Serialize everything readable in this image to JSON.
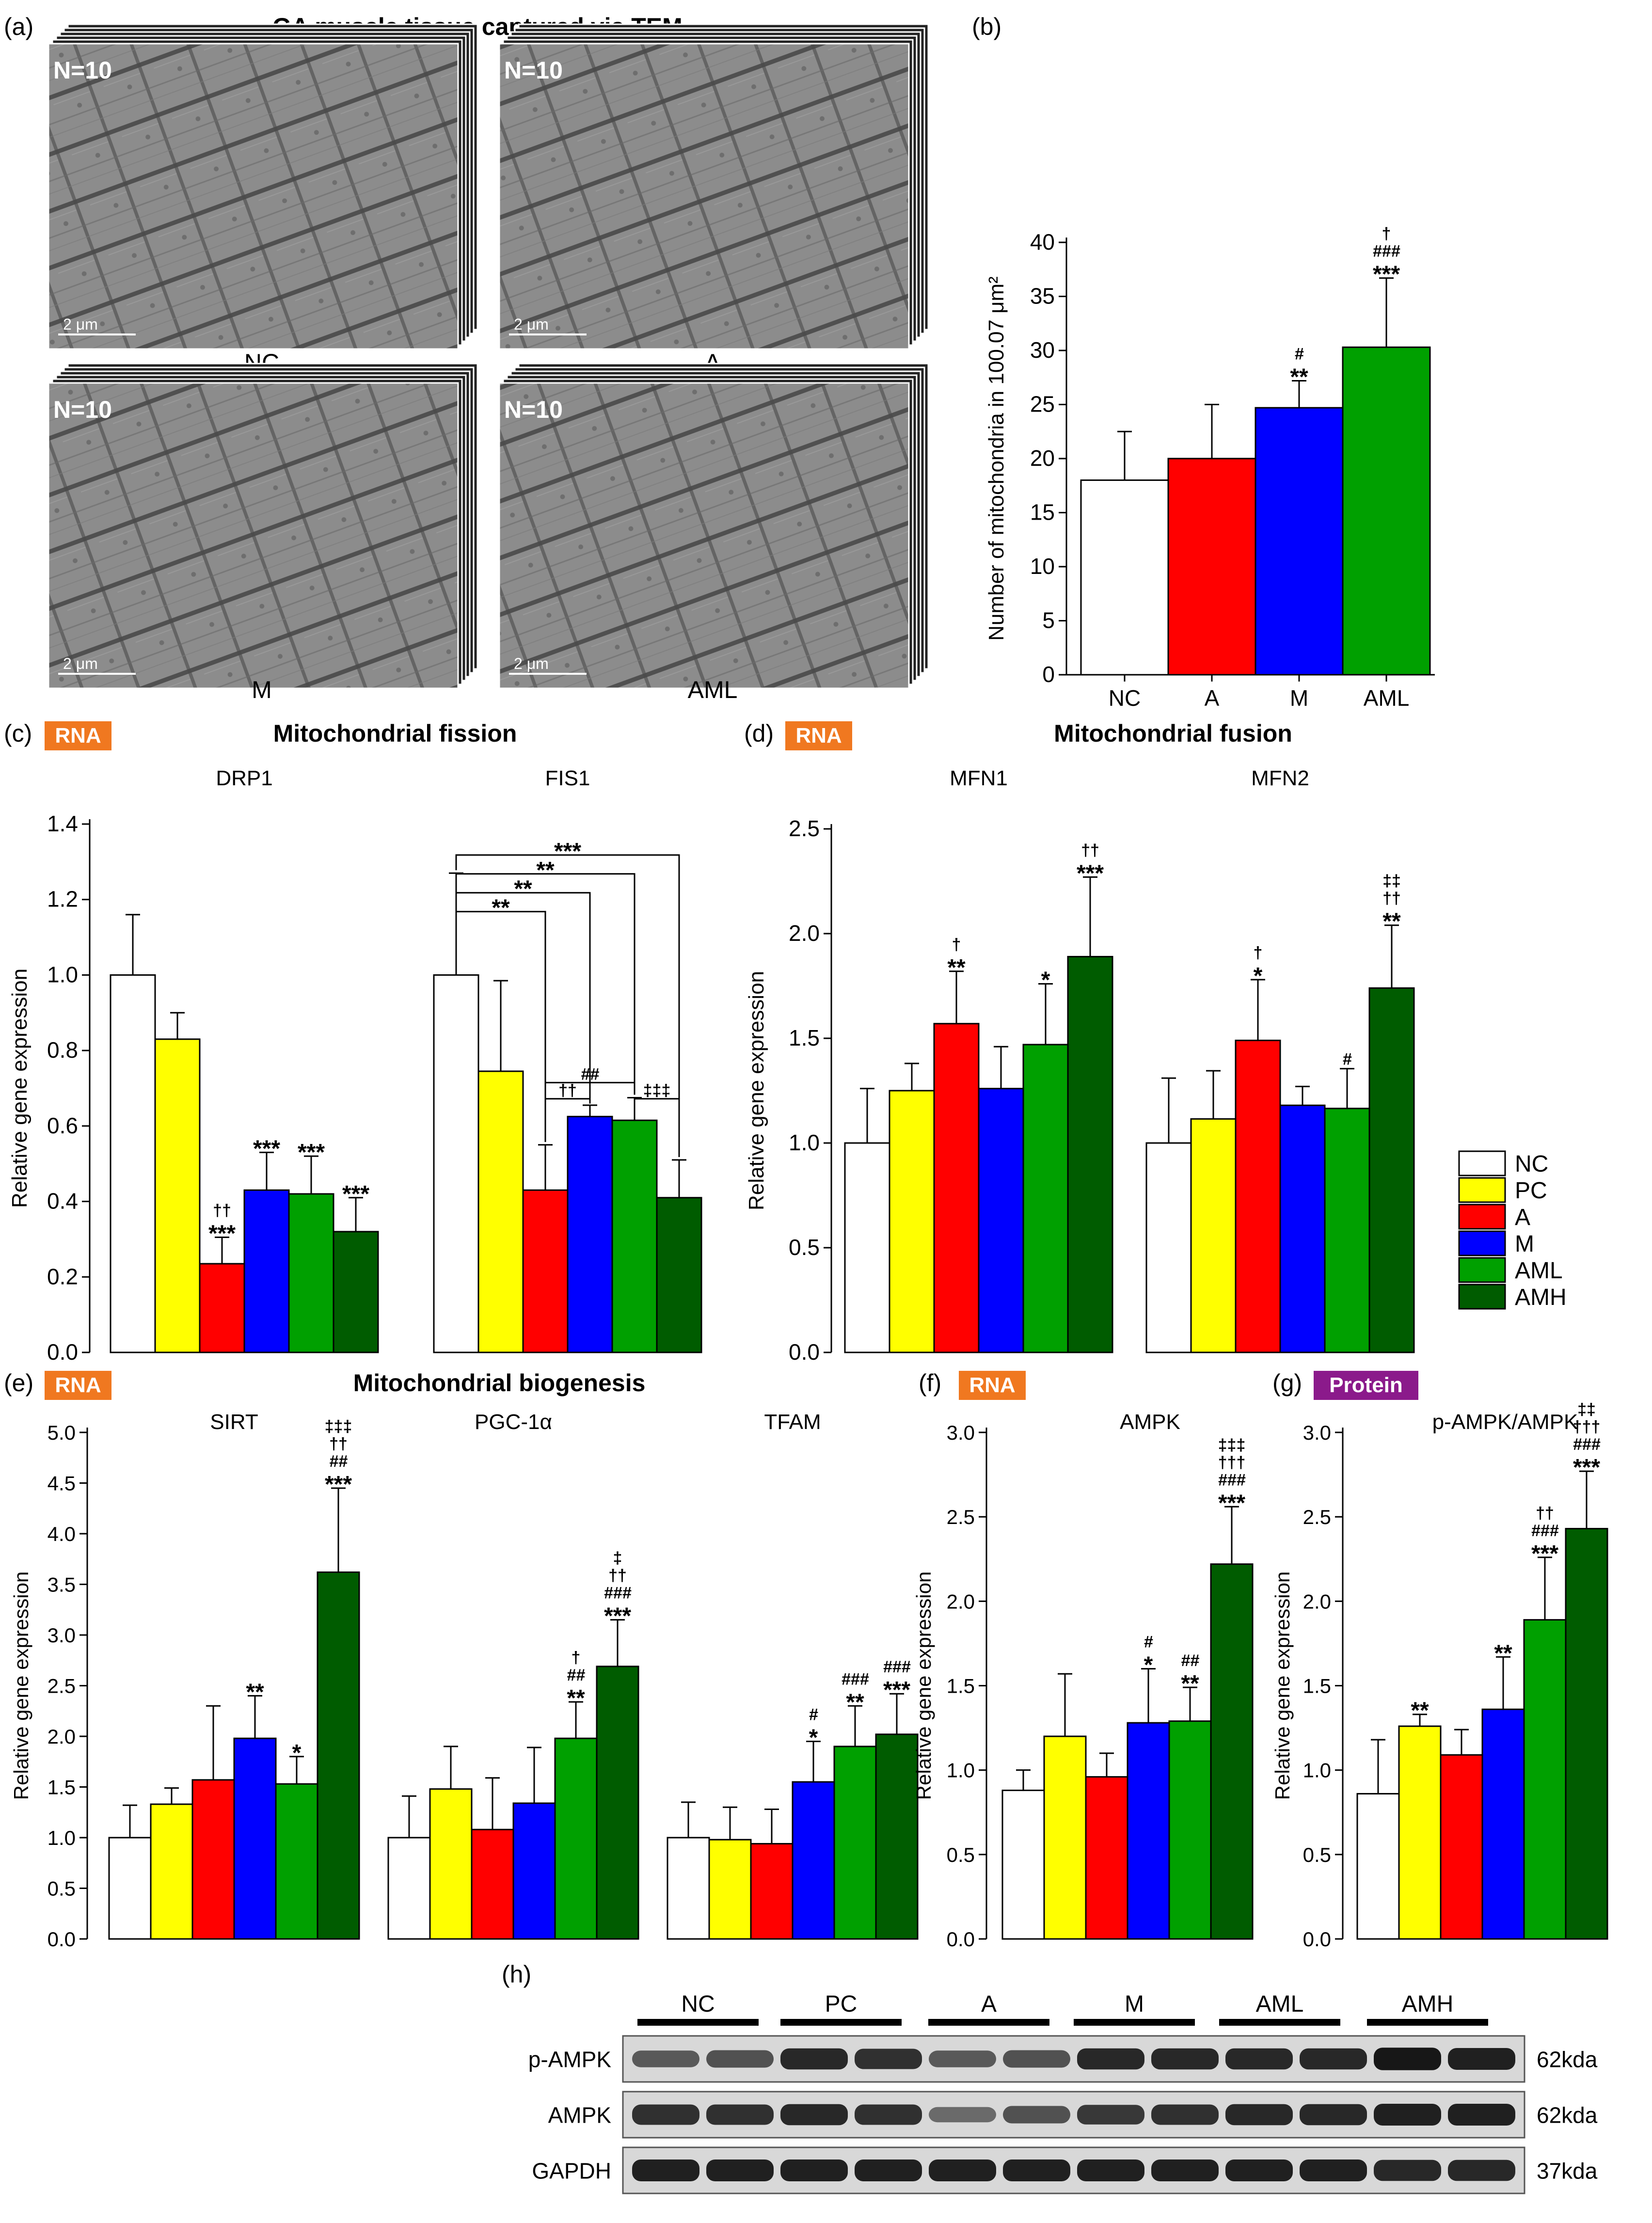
{
  "colors": {
    "NC": "#ffffff",
    "PC": "#ffff00",
    "A": "#ff0000",
    "M": "#0000ff",
    "AML": "#00a000",
    "AMH": "#005c00",
    "rna_badge": "#f07820",
    "protein_badge": "#8b1a8b",
    "axis": "#000000"
  },
  "panel_a": {
    "label": "(a)",
    "title": "GA muscle tissue captured via TEM",
    "images": [
      {
        "caption": "NC",
        "n_label": "N=10",
        "scale": "2 μm"
      },
      {
        "caption": "A",
        "n_label": "N=10",
        "scale": "2 μm"
      },
      {
        "caption": "M",
        "n_label": "N=10",
        "scale": "2 μm"
      },
      {
        "caption": "AML",
        "n_label": "N=10",
        "scale": "2 μm"
      }
    ]
  },
  "legend": {
    "items": [
      "NC",
      "PC",
      "A",
      "M",
      "AML",
      "AMH"
    ]
  },
  "section_titles": {
    "c": {
      "label": "(c)",
      "badge": "RNA",
      "title": "Mitochondrial fission"
    },
    "d": {
      "label": "(d)",
      "badge": "RNA",
      "title": "Mitochondrial fusion"
    },
    "e": {
      "label": "(e)",
      "badge": "RNA",
      "title": "Mitochondrial biogenesis"
    },
    "f": {
      "label": "(f)",
      "badge": "RNA"
    },
    "g": {
      "label": "(g)",
      "badge": "Protein"
    },
    "h": {
      "label": "(h)"
    }
  },
  "western_blot": {
    "groups": [
      "NC",
      "PC",
      "A",
      "M",
      "AML",
      "AMH"
    ],
    "rows": [
      {
        "name": "p-AMPK",
        "size": "62kda",
        "intensity": [
          0.55,
          0.6,
          0.85,
          0.8,
          0.55,
          0.6,
          0.85,
          0.85,
          0.85,
          0.85,
          0.95,
          0.9
        ]
      },
      {
        "name": "AMPK",
        "size": "62kda",
        "intensity": [
          0.8,
          0.8,
          0.85,
          0.8,
          0.45,
          0.6,
          0.75,
          0.8,
          0.85,
          0.85,
          0.9,
          0.9
        ]
      },
      {
        "name": "GAPDH",
        "size": "37kda",
        "intensity": [
          0.9,
          0.9,
          0.9,
          0.9,
          0.9,
          0.9,
          0.9,
          0.9,
          0.9,
          0.9,
          0.85,
          0.85
        ]
      }
    ]
  },
  "chart_data": [
    {
      "id": "b",
      "label": "(b)",
      "type": "bar",
      "title": "",
      "xlabel": "",
      "ylabel": "Number of mitochondria in 100.07 μm²",
      "ylim": [
        0,
        40
      ],
      "yticks": [
        0,
        5,
        10,
        15,
        20,
        25,
        30,
        35,
        40
      ],
      "groups": [
        {
          "name": "",
          "series": [
            {
              "name": "NC",
              "value": 18.0,
              "err": 4.5,
              "sig": []
            },
            {
              "name": "A",
              "value": 20.0,
              "err": 5.0,
              "sig": []
            },
            {
              "name": "M",
              "value": 24.7,
              "err": 2.5,
              "sig": [
                "#",
                "**"
              ]
            },
            {
              "name": "AML",
              "value": 30.3,
              "err": 6.4,
              "sig": [
                "†",
                "###",
                "***"
              ]
            }
          ]
        }
      ],
      "categories": [
        "NC",
        "A",
        "M",
        "AML"
      ]
    },
    {
      "id": "c",
      "type": "bar",
      "title": "Mitochondrial fission",
      "ylabel": "Relative gene expression",
      "ylim": [
        0,
        1.4
      ],
      "yticks": [
        0.0,
        0.2,
        0.4,
        0.6,
        0.8,
        1.0,
        1.2,
        1.4
      ],
      "groups": [
        {
          "name": "DRP1",
          "series": [
            {
              "name": "NC",
              "value": 1.0,
              "err": 0.16,
              "sig": []
            },
            {
              "name": "PC",
              "value": 0.83,
              "err": 0.07,
              "sig": []
            },
            {
              "name": "A",
              "value": 0.235,
              "err": 0.07,
              "sig": [
                "††",
                "***"
              ]
            },
            {
              "name": "M",
              "value": 0.43,
              "err": 0.1,
              "sig": [
                "***"
              ]
            },
            {
              "name": "AML",
              "value": 0.42,
              "err": 0.1,
              "sig": [
                "***"
              ]
            },
            {
              "name": "AMH",
              "value": 0.32,
              "err": 0.09,
              "sig": [
                "***"
              ]
            }
          ]
        },
        {
          "name": "FIS1",
          "series": [
            {
              "name": "NC",
              "value": 1.0,
              "err": 0.27,
              "sig": []
            },
            {
              "name": "PC",
              "value": 0.745,
              "err": 0.24,
              "sig": []
            },
            {
              "name": "A",
              "value": 0.43,
              "err": 0.12,
              "sig": []
            },
            {
              "name": "M",
              "value": 0.625,
              "err": 0.03,
              "sig": []
            },
            {
              "name": "AML",
              "value": 0.615,
              "err": 0.06,
              "sig": []
            },
            {
              "name": "AMH",
              "value": 0.41,
              "err": 0.1,
              "sig": []
            }
          ]
        }
      ],
      "brackets": [
        {
          "group": 1,
          "from": 0,
          "to": 5,
          "text": "***",
          "level": 1.318
        },
        {
          "group": 1,
          "from": 0,
          "to": 4,
          "text": "**",
          "level": 1.268
        },
        {
          "group": 1,
          "from": 0,
          "to": 3,
          "text": "**",
          "level": 1.218
        },
        {
          "group": 1,
          "from": 0,
          "to": 2,
          "text": "**",
          "level": 1.168
        },
        {
          "group": 1,
          "from": 2,
          "to": 4,
          "text": "##",
          "level": 0.715
        },
        {
          "group": 1,
          "from": 2,
          "to": 3,
          "text": "††",
          "level": 0.672
        },
        {
          "group": 1,
          "from": 4,
          "to": 5,
          "text": "‡‡‡",
          "level": 0.672
        }
      ]
    },
    {
      "id": "d",
      "type": "bar",
      "title": "Mitochondrial fusion",
      "ylabel": "Relative gene expression",
      "ylim": [
        0,
        2.5
      ],
      "yticks": [
        0.0,
        0.5,
        1.0,
        1.5,
        2.0,
        2.5
      ],
      "groups": [
        {
          "name": "MFN1",
          "series": [
            {
              "name": "NC",
              "value": 1.0,
              "err": 0.26,
              "sig": []
            },
            {
              "name": "PC",
              "value": 1.25,
              "err": 0.13,
              "sig": []
            },
            {
              "name": "A",
              "value": 1.57,
              "err": 0.25,
              "sig": [
                "†",
                "**"
              ]
            },
            {
              "name": "M",
              "value": 1.26,
              "err": 0.2,
              "sig": []
            },
            {
              "name": "AML",
              "value": 1.47,
              "err": 0.29,
              "sig": [
                "*"
              ]
            },
            {
              "name": "AMH",
              "value": 1.89,
              "err": 0.38,
              "sig": [
                "††",
                "***"
              ]
            }
          ]
        },
        {
          "name": "MFN2",
          "series": [
            {
              "name": "NC",
              "value": 1.0,
              "err": 0.31,
              "sig": []
            },
            {
              "name": "PC",
              "value": 1.115,
              "err": 0.23,
              "sig": []
            },
            {
              "name": "A",
              "value": 1.49,
              "err": 0.29,
              "sig": [
                "†",
                "*"
              ]
            },
            {
              "name": "M",
              "value": 1.18,
              "err": 0.09,
              "sig": []
            },
            {
              "name": "AML",
              "value": 1.165,
              "err": 0.19,
              "sig": [
                "#"
              ]
            },
            {
              "name": "AMH",
              "value": 1.74,
              "err": 0.3,
              "sig": [
                "‡‡",
                "††",
                "**"
              ]
            }
          ]
        }
      ]
    },
    {
      "id": "e",
      "type": "bar",
      "title": "Mitochondrial biogenesis",
      "ylabel": "Relative gene expression",
      "ylim": [
        0,
        5.0
      ],
      "yticks": [
        0.0,
        0.5,
        1.0,
        1.5,
        2.0,
        2.5,
        3.0,
        3.5,
        4.0,
        4.5,
        5.0
      ],
      "groups": [
        {
          "name": "SIRT",
          "series": [
            {
              "name": "NC",
              "value": 1.0,
              "err": 0.32,
              "sig": []
            },
            {
              "name": "PC",
              "value": 1.33,
              "err": 0.16,
              "sig": []
            },
            {
              "name": "A",
              "value": 1.57,
              "err": 0.73,
              "sig": []
            },
            {
              "name": "M",
              "value": 1.98,
              "err": 0.42,
              "sig": [
                "**"
              ]
            },
            {
              "name": "AML",
              "value": 1.53,
              "err": 0.27,
              "sig": [
                "*"
              ]
            },
            {
              "name": "AMH",
              "value": 3.62,
              "err": 0.83,
              "sig": [
                "‡‡‡",
                "††",
                "##",
                "***"
              ]
            }
          ]
        },
        {
          "name": "PGC-1α",
          "series": [
            {
              "name": "NC",
              "value": 1.0,
              "err": 0.41,
              "sig": []
            },
            {
              "name": "PC",
              "value": 1.48,
              "err": 0.42,
              "sig": []
            },
            {
              "name": "A",
              "value": 1.08,
              "err": 0.51,
              "sig": []
            },
            {
              "name": "M",
              "value": 1.34,
              "err": 0.55,
              "sig": []
            },
            {
              "name": "AML",
              "value": 1.98,
              "err": 0.36,
              "sig": [
                "†",
                "##",
                "**"
              ]
            },
            {
              "name": "AMH",
              "value": 2.69,
              "err": 0.46,
              "sig": [
                "‡",
                "††",
                "###",
                "***"
              ]
            }
          ]
        },
        {
          "name": "TFAM",
          "series": [
            {
              "name": "NC",
              "value": 1.0,
              "err": 0.35,
              "sig": []
            },
            {
              "name": "PC",
              "value": 0.98,
              "err": 0.32,
              "sig": []
            },
            {
              "name": "A",
              "value": 0.94,
              "err": 0.34,
              "sig": []
            },
            {
              "name": "M",
              "value": 1.55,
              "err": 0.4,
              "sig": [
                "#",
                "*"
              ]
            },
            {
              "name": "AML",
              "value": 1.9,
              "err": 0.4,
              "sig": [
                "###",
                "**"
              ]
            },
            {
              "name": "AMH",
              "value": 2.02,
              "err": 0.4,
              "sig": [
                "###",
                "***"
              ]
            }
          ]
        }
      ]
    },
    {
      "id": "f",
      "type": "bar",
      "title": "AMPK",
      "ylabel": "Relative gene expression",
      "ylim": [
        0,
        3.0
      ],
      "yticks": [
        0.0,
        0.5,
        1.0,
        1.5,
        2.0,
        2.5,
        3.0
      ],
      "groups": [
        {
          "name": "",
          "series": [
            {
              "name": "NC",
              "value": 0.88,
              "err": 0.12,
              "sig": []
            },
            {
              "name": "PC",
              "value": 1.2,
              "err": 0.37,
              "sig": []
            },
            {
              "name": "A",
              "value": 0.96,
              "err": 0.14,
              "sig": []
            },
            {
              "name": "M",
              "value": 1.28,
              "err": 0.32,
              "sig": [
                "#",
                "*"
              ]
            },
            {
              "name": "AML",
              "value": 1.29,
              "err": 0.2,
              "sig": [
                "##",
                "**"
              ]
            },
            {
              "name": "AMH",
              "value": 2.22,
              "err": 0.34,
              "sig": [
                "‡‡‡",
                "†††",
                "###",
                "***"
              ]
            }
          ]
        }
      ]
    },
    {
      "id": "g",
      "type": "bar",
      "title": "p-AMPK/AMPK",
      "ylabel": "Relative gene expression",
      "ylim": [
        0,
        3.0
      ],
      "yticks": [
        0.0,
        0.5,
        1.0,
        1.5,
        2.0,
        2.5,
        3.0
      ],
      "groups": [
        {
          "name": "",
          "series": [
            {
              "name": "NC",
              "value": 0.86,
              "err": 0.32,
              "sig": []
            },
            {
              "name": "PC",
              "value": 1.26,
              "err": 0.07,
              "sig": [
                "**"
              ]
            },
            {
              "name": "A",
              "value": 1.09,
              "err": 0.15,
              "sig": []
            },
            {
              "name": "M",
              "value": 1.36,
              "err": 0.31,
              "sig": [
                "**"
              ]
            },
            {
              "name": "AML",
              "value": 1.89,
              "err": 0.37,
              "sig": [
                "††",
                "###",
                "***"
              ]
            },
            {
              "name": "AMH",
              "value": 2.43,
              "err": 0.34,
              "sig": [
                "‡‡",
                "†††",
                "###",
                "***"
              ]
            }
          ]
        }
      ]
    }
  ]
}
